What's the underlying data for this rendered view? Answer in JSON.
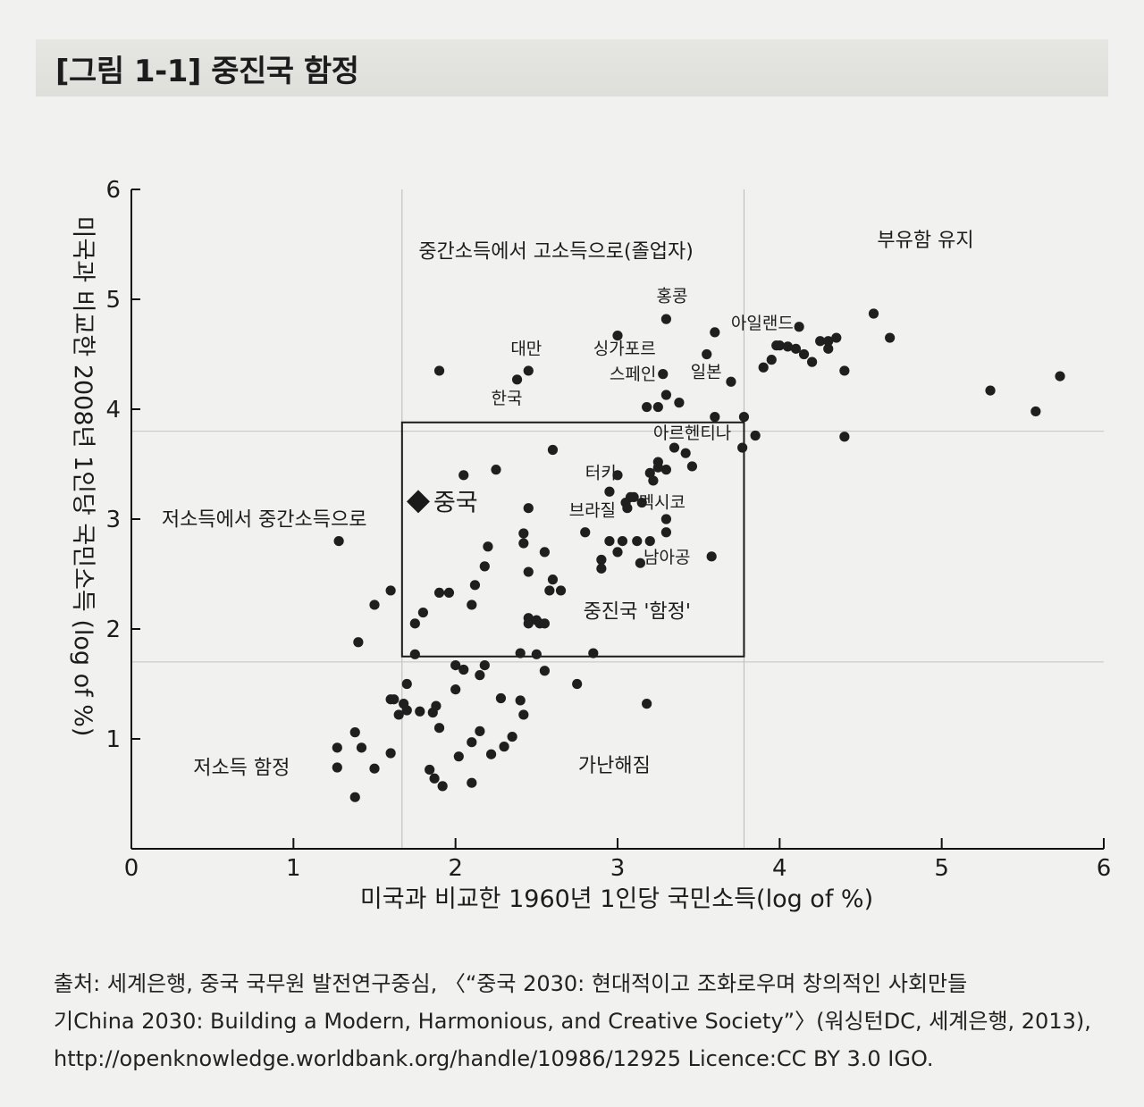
{
  "figure": {
    "title": "[그림 1-1]  중진국 함정"
  },
  "chart_data": {
    "type": "scatter",
    "title": "",
    "xlabel": "미국과 비교한 1960년 1인당 국민소득(log of %)",
    "ylabel": "미국과 비교한 2008년 1인당 국민소득 (log of %)",
    "xlim": [
      0,
      6
    ],
    "ylim": [
      0,
      6
    ],
    "x_ticks": [
      "0",
      "1",
      "2",
      "3",
      "4",
      "5",
      "6"
    ],
    "y_ticks": [
      "1",
      "2",
      "3",
      "4",
      "5",
      "6"
    ],
    "grid": false,
    "reference_lines": {
      "x": [
        1.67,
        3.78
      ],
      "y": [
        1.7,
        3.8
      ]
    },
    "trap_box": {
      "x": [
        1.67,
        3.78
      ],
      "y": [
        1.75,
        3.88
      ]
    },
    "quadrant_labels": [
      {
        "text": "중간소득에서 고소득으로(졸업자)",
        "x": 2.62,
        "y": 5.38
      },
      {
        "text": "부유함 유지",
        "x": 4.9,
        "y": 5.48
      },
      {
        "text": "저소득에서 중간소득으로",
        "x": 0.82,
        "y": 2.94
      },
      {
        "text": "중진국 '함정'",
        "x": 3.12,
        "y": 2.1
      },
      {
        "text": "저소득 함정",
        "x": 0.68,
        "y": 0.68
      },
      {
        "text": "가난해짐",
        "x": 2.98,
        "y": 0.7
      }
    ],
    "highlight": {
      "name": "중국",
      "x": 1.77,
      "y": 3.16
    },
    "annotations": [
      {
        "text": "홍콩",
        "x": 3.24,
        "y": 4.98
      },
      {
        "text": "아일랜드",
        "x": 3.7,
        "y": 4.73
      },
      {
        "text": "대만",
        "x": 2.34,
        "y": 4.5
      },
      {
        "text": "싱가포르",
        "x": 2.85,
        "y": 4.5
      },
      {
        "text": "스페인",
        "x": 2.95,
        "y": 4.27
      },
      {
        "text": "일본",
        "x": 3.45,
        "y": 4.29
      },
      {
        "text": "한국",
        "x": 2.22,
        "y": 4.05
      },
      {
        "text": "아르헨티나",
        "x": 3.22,
        "y": 3.73
      },
      {
        "text": "터키",
        "x": 2.8,
        "y": 3.37
      },
      {
        "text": "브라질",
        "x": 2.7,
        "y": 3.03
      },
      {
        "text": "멕시코",
        "x": 3.13,
        "y": 3.1
      },
      {
        "text": "남아공",
        "x": 3.16,
        "y": 2.6
      }
    ],
    "points": [
      [
        1.9,
        4.35
      ],
      [
        2.38,
        4.27
      ],
      [
        2.45,
        4.35
      ],
      [
        3.0,
        4.67
      ],
      [
        3.3,
        4.82
      ],
      [
        3.28,
        4.32
      ],
      [
        3.3,
        4.13
      ],
      [
        3.38,
        4.06
      ],
      [
        3.18,
        4.02
      ],
      [
        3.25,
        4.02
      ],
      [
        3.55,
        4.5
      ],
      [
        3.6,
        4.7
      ],
      [
        3.7,
        4.25
      ],
      [
        3.6,
        3.93
      ],
      [
        3.78,
        3.93
      ],
      [
        3.77,
        3.65
      ],
      [
        3.85,
        3.76
      ],
      [
        3.35,
        3.65
      ],
      [
        3.42,
        3.6
      ],
      [
        3.46,
        3.48
      ],
      [
        3.25,
        3.52
      ],
      [
        3.25,
        3.47
      ],
      [
        3.3,
        3.45
      ],
      [
        3.2,
        3.42
      ],
      [
        3.22,
        3.35
      ],
      [
        2.6,
        3.63
      ],
      [
        2.05,
        3.4
      ],
      [
        2.25,
        3.45
      ],
      [
        3.0,
        3.4
      ],
      [
        2.95,
        3.25
      ],
      [
        3.08,
        3.2
      ],
      [
        3.05,
        3.15
      ],
      [
        3.1,
        3.2
      ],
      [
        3.06,
        3.1
      ],
      [
        3.15,
        3.15
      ],
      [
        2.45,
        3.1
      ],
      [
        3.3,
        3.0
      ],
      [
        2.8,
        2.88
      ],
      [
        2.42,
        2.87
      ],
      [
        2.42,
        2.78
      ],
      [
        3.3,
        2.88
      ],
      [
        2.95,
        2.8
      ],
      [
        3.03,
        2.8
      ],
      [
        3.12,
        2.8
      ],
      [
        3.2,
        2.8
      ],
      [
        3.0,
        2.7
      ],
      [
        2.55,
        2.7
      ],
      [
        2.2,
        2.75
      ],
      [
        3.58,
        2.66
      ],
      [
        2.9,
        2.63
      ],
      [
        3.14,
        2.6
      ],
      [
        2.9,
        2.55
      ],
      [
        2.18,
        2.57
      ],
      [
        2.45,
        2.52
      ],
      [
        2.6,
        2.45
      ],
      [
        2.65,
        2.35
      ],
      [
        2.58,
        2.35
      ],
      [
        2.12,
        2.4
      ],
      [
        2.1,
        2.22
      ],
      [
        1.9,
        2.33
      ],
      [
        1.96,
        2.33
      ],
      [
        1.6,
        2.35
      ],
      [
        1.5,
        2.22
      ],
      [
        1.8,
        2.15
      ],
      [
        1.75,
        2.05
      ],
      [
        2.45,
        2.05
      ],
      [
        2.52,
        2.05
      ],
      [
        2.5,
        2.08
      ],
      [
        2.45,
        2.1
      ],
      [
        2.55,
        2.05
      ],
      [
        1.4,
        1.88
      ],
      [
        1.75,
        1.77
      ],
      [
        2.4,
        1.78
      ],
      [
        2.5,
        1.77
      ],
      [
        2.85,
        1.78
      ],
      [
        2.18,
        1.67
      ],
      [
        2.0,
        1.67
      ],
      [
        2.05,
        1.63
      ],
      [
        2.15,
        1.58
      ],
      [
        2.55,
        1.62
      ],
      [
        2.75,
        1.5
      ],
      [
        1.7,
        1.5
      ],
      [
        1.6,
        1.36
      ],
      [
        1.62,
        1.36
      ],
      [
        1.68,
        1.32
      ],
      [
        1.7,
        1.26
      ],
      [
        1.78,
        1.25
      ],
      [
        1.86,
        1.24
      ],
      [
        1.88,
        1.3
      ],
      [
        1.65,
        1.22
      ],
      [
        2.0,
        1.45
      ],
      [
        2.28,
        1.37
      ],
      [
        2.4,
        1.35
      ],
      [
        2.42,
        1.22
      ],
      [
        3.18,
        1.32
      ],
      [
        1.9,
        1.1
      ],
      [
        2.15,
        1.07
      ],
      [
        2.1,
        0.97
      ],
      [
        2.22,
        0.86
      ],
      [
        2.3,
        0.93
      ],
      [
        2.35,
        1.02
      ],
      [
        2.02,
        0.84
      ],
      [
        1.6,
        0.87
      ],
      [
        1.38,
        1.06
      ],
      [
        1.42,
        0.92
      ],
      [
        1.27,
        0.92
      ],
      [
        1.27,
        0.74
      ],
      [
        1.5,
        0.73
      ],
      [
        1.84,
        0.72
      ],
      [
        1.87,
        0.64
      ],
      [
        1.92,
        0.57
      ],
      [
        2.1,
        0.6
      ],
      [
        1.38,
        0.47
      ],
      [
        1.28,
        2.8
      ],
      [
        4.4,
        3.75
      ],
      [
        3.9,
        4.38
      ],
      [
        3.95,
        4.45
      ],
      [
        3.98,
        4.58
      ],
      [
        4.0,
        4.58
      ],
      [
        4.05,
        4.57
      ],
      [
        4.1,
        4.55
      ],
      [
        4.15,
        4.5
      ],
      [
        4.2,
        4.43
      ],
      [
        4.25,
        4.62
      ],
      [
        4.3,
        4.62
      ],
      [
        4.3,
        4.55
      ],
      [
        4.35,
        4.65
      ],
      [
        4.4,
        4.35
      ],
      [
        4.12,
        4.75
      ],
      [
        4.58,
        4.87
      ],
      [
        4.68,
        4.65
      ],
      [
        5.3,
        4.17
      ],
      [
        5.58,
        3.98
      ],
      [
        5.73,
        4.3
      ]
    ]
  },
  "source": {
    "line1": "출처: 세계은행, 중국 국무원 발전연구중심, 〈“중국 2030: 현대적이고 조화로우며 창의적인 사회만들",
    "line2": "기China 2030: Building a Modern, Harmonious, and Creative Society”〉(워싱턴DC, 세계은행, 2013),",
    "line3": "http://openknowledge.worldbank.org/handle/10986/12925 Licence:CC BY 3.0 IGO."
  }
}
